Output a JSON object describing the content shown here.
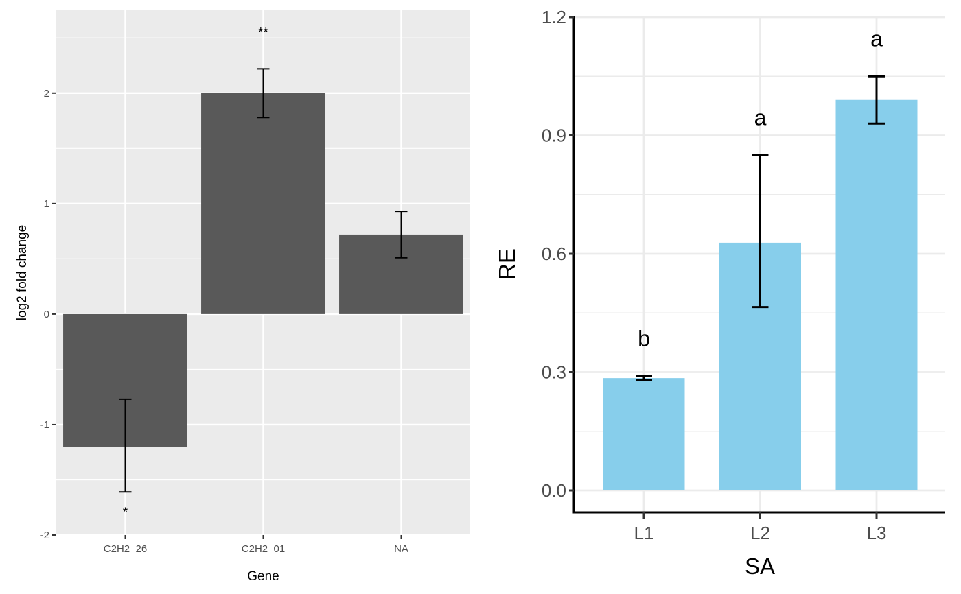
{
  "chart_data": [
    {
      "type": "bar",
      "title": "",
      "xlabel": "Gene",
      "ylabel": "log2 fold change",
      "categories": [
        "C2H2_26",
        "C2H2_01",
        "NA"
      ],
      "values": [
        -1.2,
        2.0,
        0.72
      ],
      "error_upper": [
        -0.77,
        2.22,
        0.93
      ],
      "error_lower": [
        -1.61,
        1.78,
        0.51
      ],
      "annotations": [
        "*",
        "**",
        ""
      ],
      "annotation_positions": [
        "below",
        "above",
        "none"
      ],
      "ylim": [
        -2.0,
        2.75
      ],
      "yticks": [
        -2,
        -1,
        0,
        1,
        2
      ],
      "ytick_labels": [
        "-2",
        "-1",
        "0",
        "1",
        "2"
      ],
      "grid": true,
      "theme": "grey",
      "colors": {
        "bar": "#595959",
        "panel": "#ebebeb",
        "grid": "#ffffff",
        "error": "#000000"
      }
    },
    {
      "type": "bar",
      "title": "",
      "xlabel": "SA",
      "ylabel": "RE",
      "categories": [
        "L1",
        "L2",
        "L3"
      ],
      "values": [
        0.285,
        0.628,
        0.99
      ],
      "error_upper": [
        0.29,
        0.85,
        1.05
      ],
      "error_lower": [
        0.28,
        0.465,
        0.93
      ],
      "annotations": [
        "b",
        "a",
        "a"
      ],
      "ylim": [
        -0.055,
        1.2
      ],
      "yticks": [
        0.0,
        0.3,
        0.6,
        0.9,
        1.2
      ],
      "ytick_labels": [
        "0.0",
        "0.3",
        "0.6",
        "0.9",
        "1.2"
      ],
      "grid": true,
      "theme": "classic-with-grid",
      "colors": {
        "bar": "#87ceeb",
        "panel": "#ffffff",
        "grid": "#ebebeb",
        "error": "#000000"
      }
    }
  ]
}
